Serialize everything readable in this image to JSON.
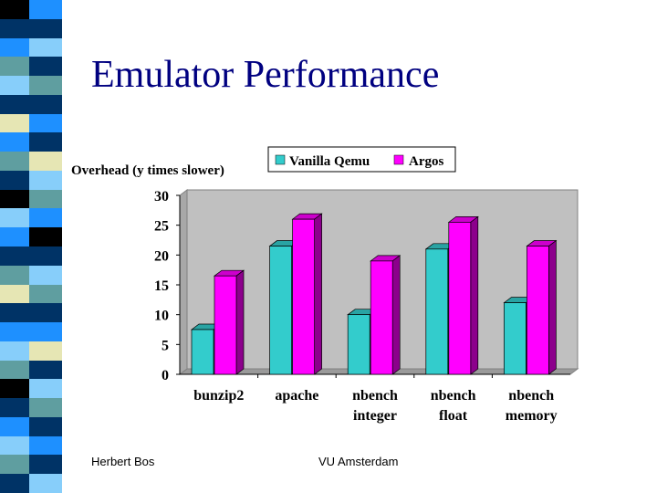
{
  "slide": {
    "title": "Emulator Performance",
    "footer_left": "Herbert Bos",
    "footer_center": "VU Amsterdam"
  },
  "colors": {
    "title": "#000080",
    "series_qemu": "#33CCCC",
    "series_argos": "#FF00FF",
    "plot_bg": "#C0C0C0",
    "sidebar": [
      "#1E90FF",
      "#003366",
      "#5F9EA0",
      "#87CEFA",
      "#E6E6B4",
      "#000000"
    ]
  },
  "chart_data": {
    "type": "bar",
    "style": "3d-clustered",
    "title": "",
    "ylabel": "Overhead (y times slower)",
    "xlabel": "",
    "categories": [
      [
        "bunzip2"
      ],
      [
        "apache"
      ],
      [
        "nbench",
        "integer"
      ],
      [
        "nbench",
        "float"
      ],
      [
        "nbench",
        "memory"
      ]
    ],
    "series": [
      {
        "name": "Vanilla Qemu",
        "values": [
          7.5,
          21.5,
          10,
          21,
          12
        ]
      },
      {
        "name": "Argos",
        "values": [
          16.5,
          26,
          19,
          25.5,
          21.5
        ]
      }
    ],
    "ylim": [
      0,
      30
    ],
    "yticks": [
      0,
      5,
      10,
      15,
      20,
      25,
      30
    ],
    "grid": false,
    "legend_position": "top-right"
  }
}
